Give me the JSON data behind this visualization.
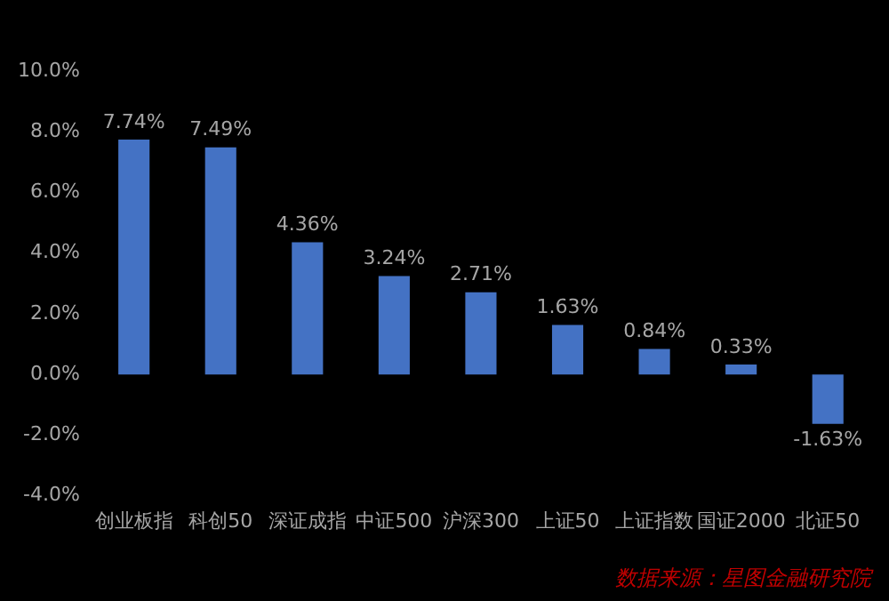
{
  "chart_data": {
    "type": "bar",
    "categories": [
      "创业板指",
      "科创50",
      "深证成指",
      "中证500",
      "沪深300",
      "上证50",
      "上证指数",
      "国证2000",
      "北证50"
    ],
    "values": [
      7.74,
      7.49,
      4.36,
      3.24,
      2.71,
      1.63,
      0.84,
      0.33,
      -1.63
    ],
    "value_labels": [
      "7.74%",
      "7.49%",
      "4.36%",
      "3.24%",
      "2.71%",
      "1.63%",
      "0.84%",
      "0.33%",
      "-1.63%"
    ],
    "color": "#4472c4",
    "ylim": [
      -4,
      10
    ],
    "yticks": [
      {
        "value": -4,
        "label": "-4.0%"
      },
      {
        "value": -2,
        "label": "-2.0%"
      },
      {
        "value": 0,
        "label": "0.0%"
      },
      {
        "value": 2,
        "label": "2.0%"
      },
      {
        "value": 4,
        "label": "4.0%"
      },
      {
        "value": 6,
        "label": "6.0%"
      },
      {
        "value": 8,
        "label": "8.0%"
      },
      {
        "value": 10,
        "label": "10.0%"
      }
    ],
    "grid": false,
    "legend": false,
    "annotations": [
      "数据来源：星图金融研究院"
    ]
  }
}
